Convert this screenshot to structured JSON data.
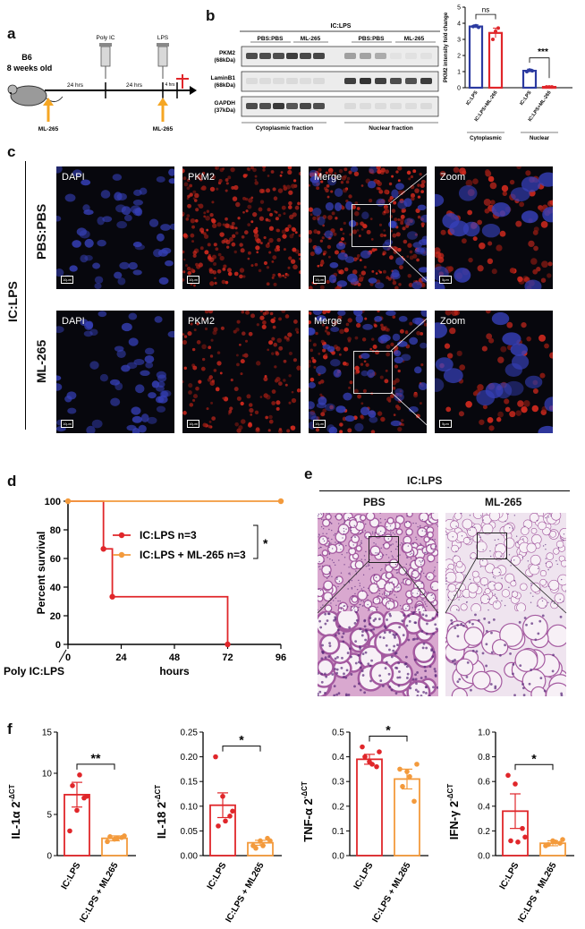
{
  "panel_a": {
    "letter": "a",
    "mouse_strain": "B6",
    "mouse_age": "8 weeks old",
    "interval1": "24 hrs",
    "interval2": "24 hrs",
    "interval3": "4 hrs",
    "poly_ic_label": "Poly IC",
    "lps_label": "LPS",
    "ml265_label_1": "ML-265",
    "ml265_label_2": "ML-265",
    "arrow_color": "#f5a623",
    "cross_color": "#e0262a"
  },
  "panel_b": {
    "letter": "b",
    "header": "IC:LPS",
    "group_labels": [
      "PBS:PBS",
      "ML-265",
      "PBS:PBS",
      "ML-265"
    ],
    "proteins": [
      "PKM2\n(68kDa)",
      "LaminB1\n(68kDa)",
      "GAPDH\n(37kDa)"
    ],
    "protein_names": [
      "PKM2",
      "LaminB1",
      "GAPDH"
    ],
    "protein_sizes": [
      "(68kDa)",
      "(68kDa)",
      "(37kDa)"
    ],
    "fraction_cyto": "Cytoplasmic fraction",
    "fraction_nuc": "Nuclear fraction"
  },
  "panel_c": {
    "letter": "c",
    "side_label": "IC:LPS",
    "row_labels": [
      "PBS:PBS",
      "ML-265"
    ],
    "column_labels": [
      "DAPI",
      "PKM2",
      "Merge",
      "Zoom"
    ],
    "scale_bars": [
      "10μm",
      "10μm",
      "10μm",
      "5μm",
      "10μm",
      "10μm",
      "10μm",
      "5μm"
    ]
  },
  "panel_e": {
    "letter": "e",
    "header": "IC:LPS",
    "col_labels": [
      "PBS",
      "ML-265"
    ]
  },
  "panel_f": {
    "letter": "f"
  },
  "chart_data": [
    {
      "id": "b_bar",
      "type": "bar",
      "ylabel": "PKM2 intensity fold change",
      "ylim": [
        0,
        5
      ],
      "yticks": [
        0,
        1,
        2,
        3,
        4,
        5
      ],
      "categories": [
        "IC:LPS",
        "IC:LPS+ML-265",
        "IC:LPS",
        "IC:LPS+ML-265"
      ],
      "values": [
        3.8,
        3.4,
        1.05,
        0.05
      ],
      "errors": [
        0.1,
        0.3,
        0.1,
        0.02
      ],
      "points": [
        [
          3.8,
          3.85,
          3.75
        ],
        [
          3.0,
          3.5,
          3.7
        ],
        [
          1.0,
          1.1,
          1.05
        ],
        [
          0.05,
          0.05,
          0.05
        ]
      ],
      "colors": [
        "#2b3aa0",
        "#e0262a",
        "#2b3aa0",
        "#e0262a"
      ],
      "groups": [
        "Cytoplasmic",
        "Nuclear"
      ],
      "significance": [
        "ns",
        "***"
      ]
    },
    {
      "id": "d_survival",
      "type": "line",
      "xlabel": "hours",
      "ylabel": "Percent survival",
      "xlim": [
        0,
        96
      ],
      "ylim": [
        0,
        100
      ],
      "xticks": [
        0,
        24,
        48,
        72,
        96
      ],
      "yticks": [
        0,
        20,
        40,
        60,
        80,
        100
      ],
      "x_annotation": "Poly IC:LPS",
      "significance": "*",
      "series": [
        {
          "name": "IC:LPS n=3",
          "color": "#e0262a",
          "x": [
            0,
            16,
            16,
            20,
            20,
            72,
            72
          ],
          "y": [
            100,
            100,
            66.7,
            66.7,
            33.3,
            33.3,
            0
          ],
          "markers": [
            [
              16,
              66.7
            ],
            [
              20,
              33.3
            ],
            [
              72,
              0
            ]
          ]
        },
        {
          "name": "IC:LPS + ML-265 n=3",
          "color": "#f39a3c",
          "x": [
            0,
            96
          ],
          "y": [
            100,
            100
          ],
          "markers": [
            [
              0,
              100
            ],
            [
              96,
              100
            ]
          ]
        }
      ]
    },
    {
      "id": "f_il1a",
      "type": "bar",
      "ylabel": "IL-1α 2",
      "ylim": [
        0,
        15
      ],
      "yticks": [
        0,
        5,
        10,
        15
      ],
      "categories": [
        "IC:LPS",
        "IC:LPS + ML265"
      ],
      "values": [
        7.4,
        2.1
      ],
      "errors": [
        1.5,
        0.3
      ],
      "points": [
        [
          3.0,
          5.5,
          7.0,
          8.5,
          9.8,
          7.2
        ],
        [
          1.7,
          2.0,
          2.2,
          2.3,
          2.1,
          2.4
        ]
      ],
      "significance": "**"
    },
    {
      "id": "f_il18",
      "type": "bar",
      "ylabel": "IL-18 2",
      "ylim": [
        0,
        0.25
      ],
      "yticks": [
        0.0,
        0.05,
        0.1,
        0.15,
        0.2,
        0.25
      ],
      "categories": [
        "IC:LPS",
        "IC:LPS + ML265"
      ],
      "values": [
        0.102,
        0.026
      ],
      "errors": [
        0.025,
        0.005
      ],
      "points": [
        [
          0.2,
          0.12,
          0.08,
          0.06,
          0.07,
          0.09
        ],
        [
          0.02,
          0.03,
          0.035,
          0.015,
          0.02,
          0.03
        ]
      ],
      "significance": "*"
    },
    {
      "id": "f_tnfa",
      "type": "bar",
      "ylabel": "TNF-α 2",
      "ylim": [
        0,
        0.5
      ],
      "yticks": [
        0.0,
        0.1,
        0.2,
        0.3,
        0.4,
        0.5
      ],
      "categories": [
        "IC:LPS",
        "IC:LPS + ML265"
      ],
      "values": [
        0.39,
        0.31
      ],
      "errors": [
        0.02,
        0.04
      ],
      "points": [
        [
          0.44,
          0.38,
          0.36,
          0.4,
          0.37,
          0.42
        ],
        [
          0.35,
          0.34,
          0.22,
          0.28,
          0.32,
          0.37
        ]
      ],
      "significance": "*"
    },
    {
      "id": "f_ifng",
      "type": "bar",
      "ylabel": "IFN-γ 2",
      "ylim": [
        0,
        1.0
      ],
      "yticks": [
        0.0,
        0.2,
        0.4,
        0.6,
        0.8,
        1.0
      ],
      "categories": [
        "IC:LPS",
        "IC:LPS + ML265"
      ],
      "values": [
        0.36,
        0.1
      ],
      "errors": [
        0.14,
        0.02
      ],
      "points": [
        [
          0.65,
          0.58,
          0.22,
          0.12,
          0.11,
          0.15
        ],
        [
          0.08,
          0.12,
          0.1,
          0.09,
          0.11,
          0.13
        ]
      ],
      "significance": "*"
    }
  ]
}
